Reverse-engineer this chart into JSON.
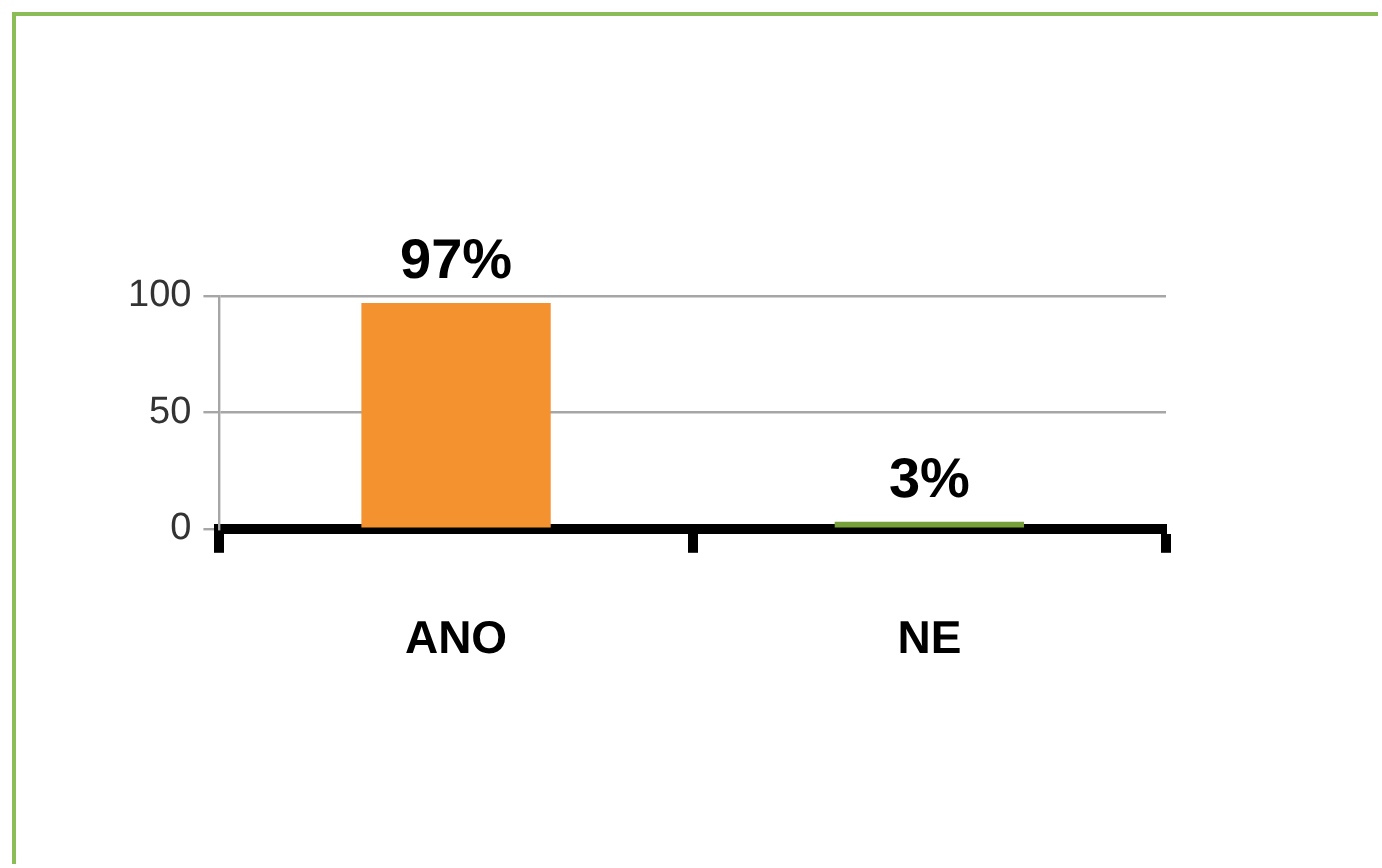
{
  "chart_data": {
    "type": "bar",
    "categories": [
      "ANO",
      "NE"
    ],
    "values": [
      97,
      3
    ],
    "colors": [
      "#f4922f",
      "#78a03a"
    ],
    "ylim": [
      0,
      100
    ],
    "yticks": [
      0,
      50,
      100
    ],
    "grid": "y",
    "value_labels": [
      "97%",
      "3%"
    ]
  }
}
